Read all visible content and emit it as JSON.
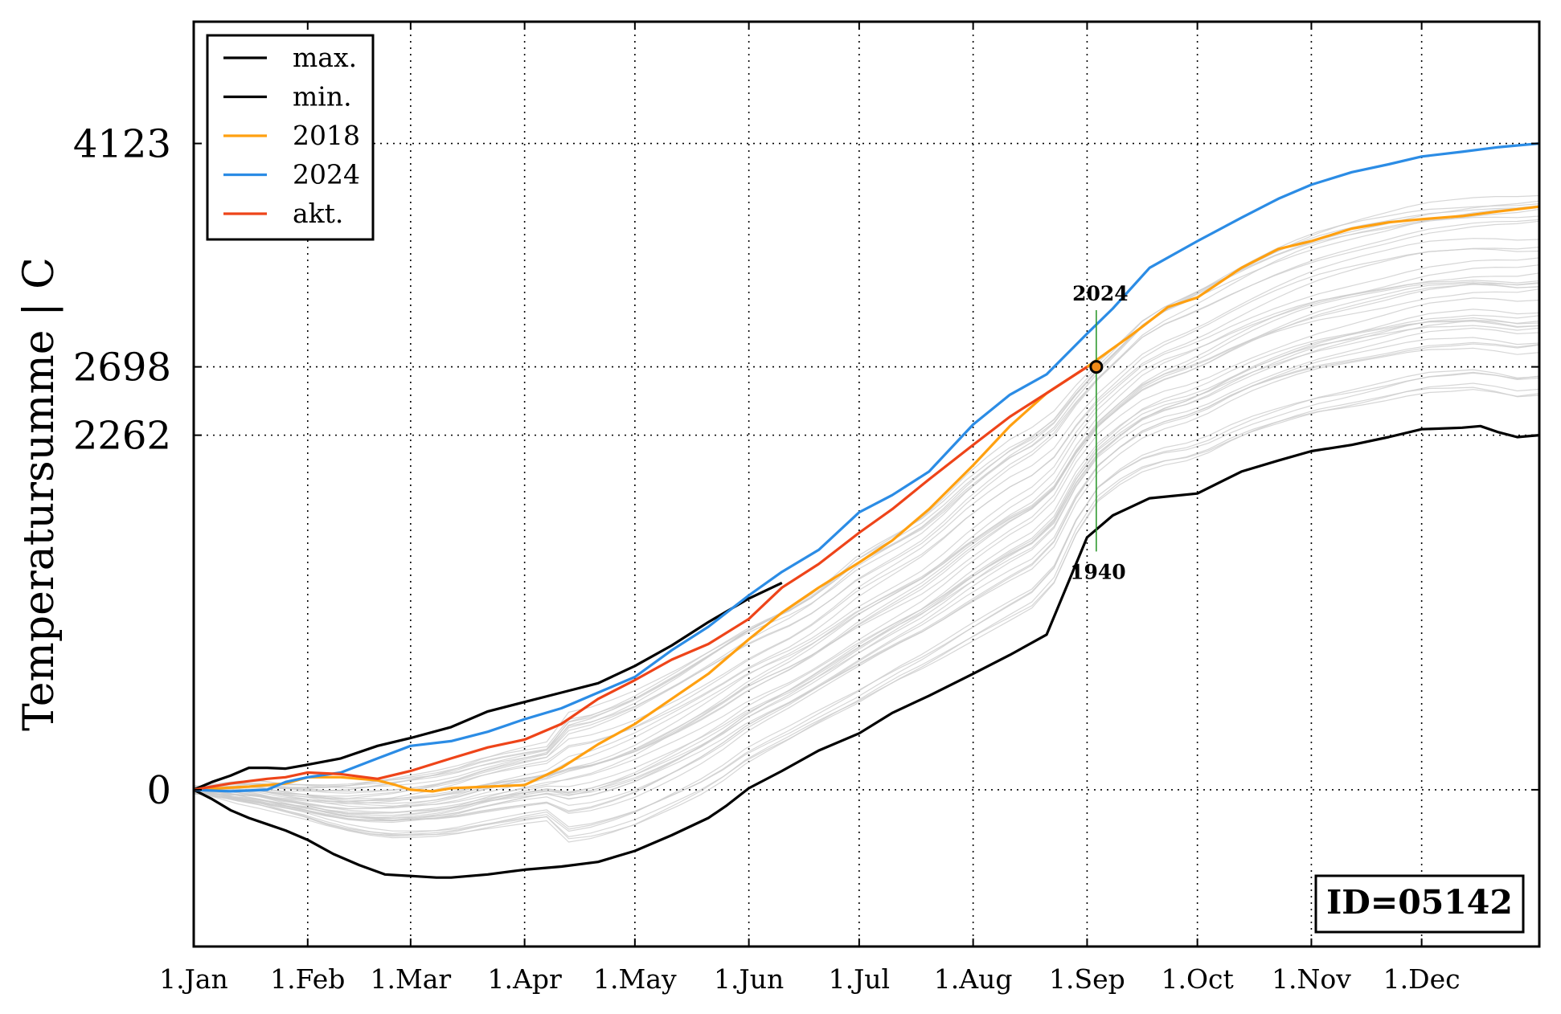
{
  "chart_data": {
    "type": "line",
    "title": "",
    "xlabel": "",
    "ylabel": "Temperatursumme | C",
    "x_range_day_of_year": [
      0,
      366
    ],
    "ylim": [
      -1000,
      4900
    ],
    "x_ticks": [
      {
        "label": "1.Jan",
        "day": 0
      },
      {
        "label": "1.Feb",
        "day": 31
      },
      {
        "label": "1.Mar",
        "day": 59
      },
      {
        "label": "1.Apr",
        "day": 90
      },
      {
        "label": "1.May",
        "day": 120
      },
      {
        "label": "1.Jun",
        "day": 151
      },
      {
        "label": "1.Jul",
        "day": 181
      },
      {
        "label": "1.Aug",
        "day": 212
      },
      {
        "label": "1.Sep",
        "day": 243
      },
      {
        "label": "1.Oct",
        "day": 273
      },
      {
        "label": "1.Nov",
        "day": 304
      },
      {
        "label": "1.Dec",
        "day": 334
      }
    ],
    "y_ticks": [
      {
        "label": "0",
        "value": 0
      },
      {
        "label": "2262",
        "value": 2262
      },
      {
        "label": "2698",
        "value": 2698
      },
      {
        "label": "4123",
        "value": 4123
      }
    ],
    "grid": true,
    "legend_position": "top-left",
    "series": [
      {
        "name": "max.",
        "color": "#000000",
        "points": [
          [
            0,
            0
          ],
          [
            5,
            50
          ],
          [
            10,
            90
          ],
          [
            15,
            140
          ],
          [
            20,
            140
          ],
          [
            25,
            135
          ],
          [
            31,
            160
          ],
          [
            40,
            200
          ],
          [
            50,
            280
          ],
          [
            59,
            330
          ],
          [
            70,
            400
          ],
          [
            80,
            500
          ],
          [
            90,
            560
          ],
          [
            100,
            620
          ],
          [
            110,
            680
          ],
          [
            120,
            790
          ],
          [
            130,
            920
          ],
          [
            140,
            1070
          ],
          [
            151,
            1220
          ],
          [
            160,
            1320
          ]
        ]
      },
      {
        "name": "min.",
        "color": "#000000",
        "points": [
          [
            0,
            0
          ],
          [
            5,
            -60
          ],
          [
            10,
            -130
          ],
          [
            15,
            -180
          ],
          [
            20,
            -220
          ],
          [
            25,
            -260
          ],
          [
            31,
            -320
          ],
          [
            38,
            -410
          ],
          [
            45,
            -480
          ],
          [
            52,
            -540
          ],
          [
            59,
            -550
          ],
          [
            66,
            -560
          ],
          [
            70,
            -560
          ],
          [
            80,
            -540
          ],
          [
            90,
            -510
          ],
          [
            100,
            -490
          ],
          [
            110,
            -460
          ],
          [
            120,
            -390
          ],
          [
            130,
            -290
          ],
          [
            140,
            -180
          ],
          [
            145,
            -100
          ],
          [
            151,
            10
          ],
          [
            160,
            120
          ],
          [
            170,
            250
          ],
          [
            181,
            360
          ],
          [
            190,
            490
          ],
          [
            200,
            600
          ],
          [
            212,
            740
          ],
          [
            222,
            860
          ],
          [
            232,
            990
          ],
          [
            243,
            1610
          ],
          [
            250,
            1750
          ],
          [
            260,
            1860
          ],
          [
            273,
            1890
          ],
          [
            285,
            2030
          ],
          [
            295,
            2100
          ],
          [
            304,
            2160
          ],
          [
            315,
            2200
          ],
          [
            325,
            2250
          ],
          [
            334,
            2300
          ],
          [
            345,
            2310
          ],
          [
            350,
            2320
          ],
          [
            355,
            2280
          ],
          [
            360,
            2250
          ],
          [
            366,
            2262
          ]
        ]
      },
      {
        "name": "2018",
        "color": "#ffa010",
        "points": [
          [
            0,
            0
          ],
          [
            15,
            20
          ],
          [
            25,
            40
          ],
          [
            31,
            80
          ],
          [
            40,
            80
          ],
          [
            50,
            60
          ],
          [
            55,
            30
          ],
          [
            59,
            0
          ],
          [
            65,
            -10
          ],
          [
            70,
            10
          ],
          [
            80,
            20
          ],
          [
            90,
            30
          ],
          [
            100,
            140
          ],
          [
            110,
            290
          ],
          [
            120,
            420
          ],
          [
            130,
            580
          ],
          [
            140,
            740
          ],
          [
            151,
            960
          ],
          [
            160,
            1130
          ],
          [
            170,
            1290
          ],
          [
            181,
            1450
          ],
          [
            190,
            1590
          ],
          [
            200,
            1790
          ],
          [
            212,
            2070
          ],
          [
            222,
            2320
          ],
          [
            232,
            2530
          ],
          [
            243,
            2698
          ],
          [
            255,
            2900
          ],
          [
            265,
            3080
          ],
          [
            273,
            3140
          ],
          [
            285,
            3330
          ],
          [
            295,
            3450
          ],
          [
            304,
            3500
          ],
          [
            315,
            3580
          ],
          [
            325,
            3620
          ],
          [
            334,
            3640
          ],
          [
            345,
            3660
          ],
          [
            355,
            3690
          ],
          [
            366,
            3720
          ]
        ]
      },
      {
        "name": "2024",
        "color": "#2b8ce5",
        "points": [
          [
            0,
            0
          ],
          [
            10,
            -10
          ],
          [
            20,
            0
          ],
          [
            25,
            50
          ],
          [
            31,
            80
          ],
          [
            40,
            110
          ],
          [
            50,
            200
          ],
          [
            59,
            280
          ],
          [
            70,
            310
          ],
          [
            80,
            370
          ],
          [
            90,
            450
          ],
          [
            100,
            520
          ],
          [
            110,
            620
          ],
          [
            120,
            720
          ],
          [
            130,
            890
          ],
          [
            140,
            1040
          ],
          [
            151,
            1240
          ],
          [
            160,
            1390
          ],
          [
            170,
            1530
          ],
          [
            181,
            1770
          ],
          [
            190,
            1880
          ],
          [
            200,
            2030
          ],
          [
            212,
            2330
          ],
          [
            222,
            2520
          ],
          [
            232,
            2650
          ],
          [
            243,
            2910
          ],
          [
            250,
            3070
          ],
          [
            260,
            3330
          ],
          [
            273,
            3500
          ],
          [
            285,
            3650
          ],
          [
            295,
            3770
          ],
          [
            304,
            3860
          ],
          [
            315,
            3940
          ],
          [
            325,
            3990
          ],
          [
            334,
            4040
          ],
          [
            345,
            4070
          ],
          [
            355,
            4100
          ],
          [
            366,
            4123
          ]
        ]
      },
      {
        "name": "akt.",
        "color": "#ee4419",
        "points": [
          [
            0,
            0
          ],
          [
            10,
            40
          ],
          [
            20,
            70
          ],
          [
            25,
            80
          ],
          [
            31,
            110
          ],
          [
            40,
            100
          ],
          [
            50,
            70
          ],
          [
            59,
            120
          ],
          [
            70,
            200
          ],
          [
            80,
            270
          ],
          [
            90,
            320
          ],
          [
            100,
            420
          ],
          [
            110,
            580
          ],
          [
            120,
            700
          ],
          [
            130,
            830
          ],
          [
            140,
            930
          ],
          [
            151,
            1090
          ],
          [
            160,
            1290
          ],
          [
            170,
            1440
          ],
          [
            181,
            1640
          ],
          [
            190,
            1790
          ],
          [
            200,
            1980
          ],
          [
            212,
            2200
          ],
          [
            222,
            2380
          ],
          [
            232,
            2530
          ],
          [
            243,
            2698
          ]
        ]
      }
    ],
    "background_years": {
      "color": "#cccccc",
      "description_count": 40
    },
    "marker": {
      "day": 245.5,
      "value": 2698
    },
    "range_line": {
      "day": 245.5,
      "from": 1520,
      "to": 3060,
      "color": "#2f9a2f",
      "top_label": "2024",
      "bottom_label": "1940"
    },
    "id_label": "ID=05142"
  }
}
